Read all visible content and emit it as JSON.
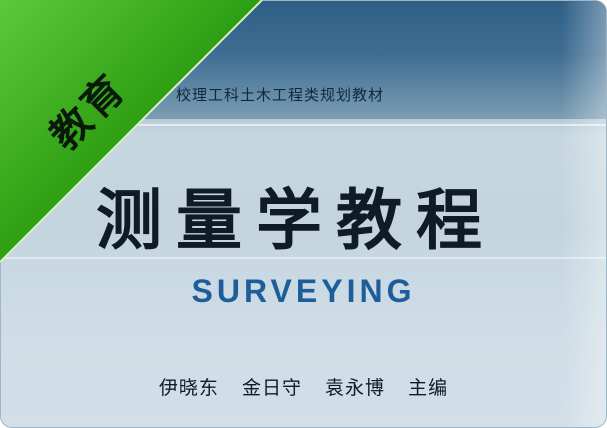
{
  "ribbon": {
    "label": "教育",
    "color": "#2e9e12"
  },
  "cover": {
    "series": "校理工科土木工程类规划教材",
    "title": "测量学教程",
    "subtitle": "SURVEYING",
    "authors": [
      "伊晓东",
      "金日守",
      "袁永博",
      "主编"
    ]
  }
}
